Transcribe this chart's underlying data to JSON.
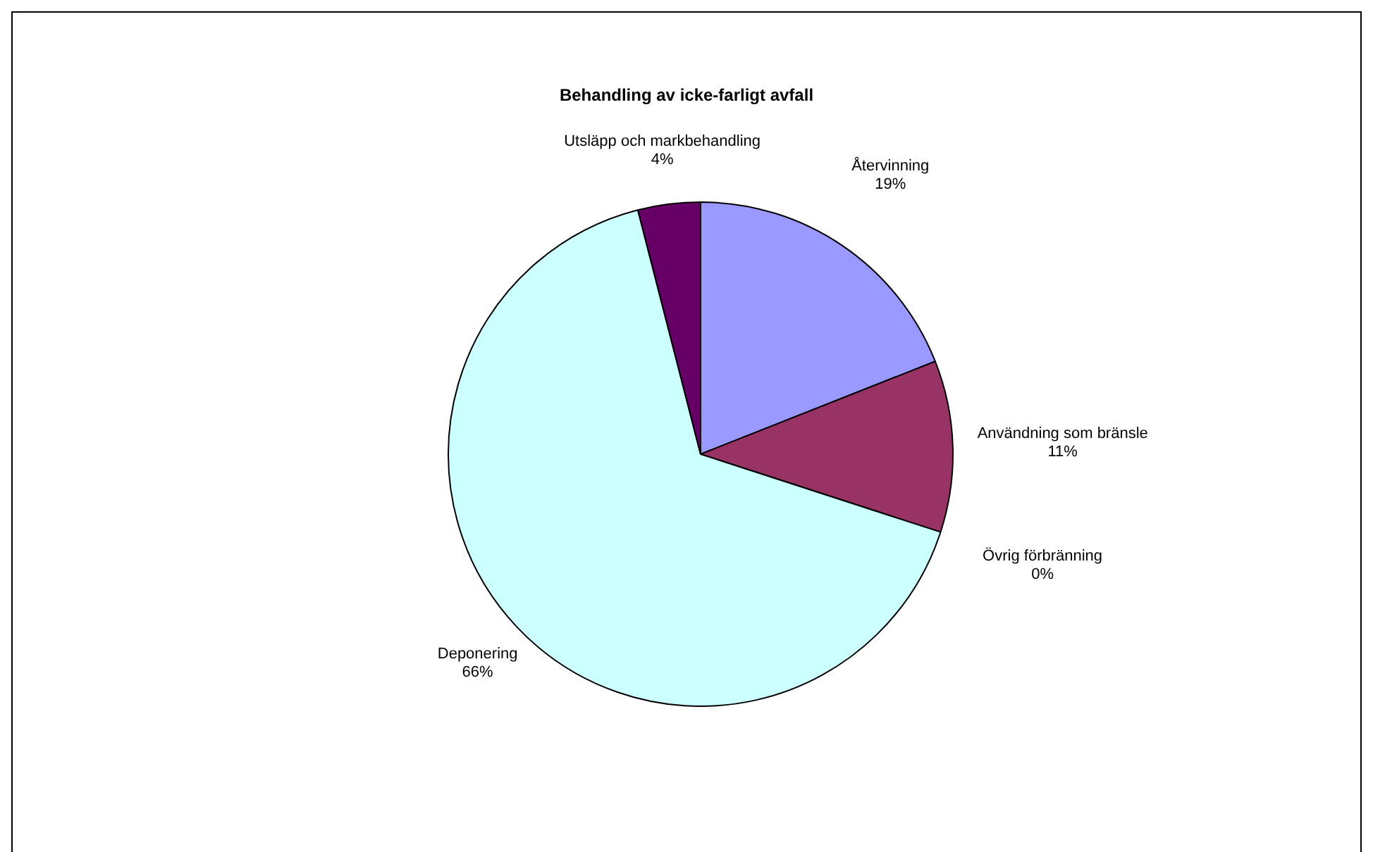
{
  "chart_data": {
    "type": "pie",
    "title": "Behandling av icke-farligt avfall",
    "categories": [
      "Återvinning",
      "Användning som bränsle",
      "Övrig förbränning",
      "Deponering",
      "Utsläpp och markbehandling"
    ],
    "values": [
      19,
      11,
      0,
      66,
      4
    ],
    "value_labels": [
      "19%",
      "11%",
      "0%",
      "66%",
      "4%"
    ],
    "colors": [
      "#9999ff",
      "#993366",
      "#ffffcc",
      "#ccffff",
      "#660066"
    ],
    "legend": false
  }
}
